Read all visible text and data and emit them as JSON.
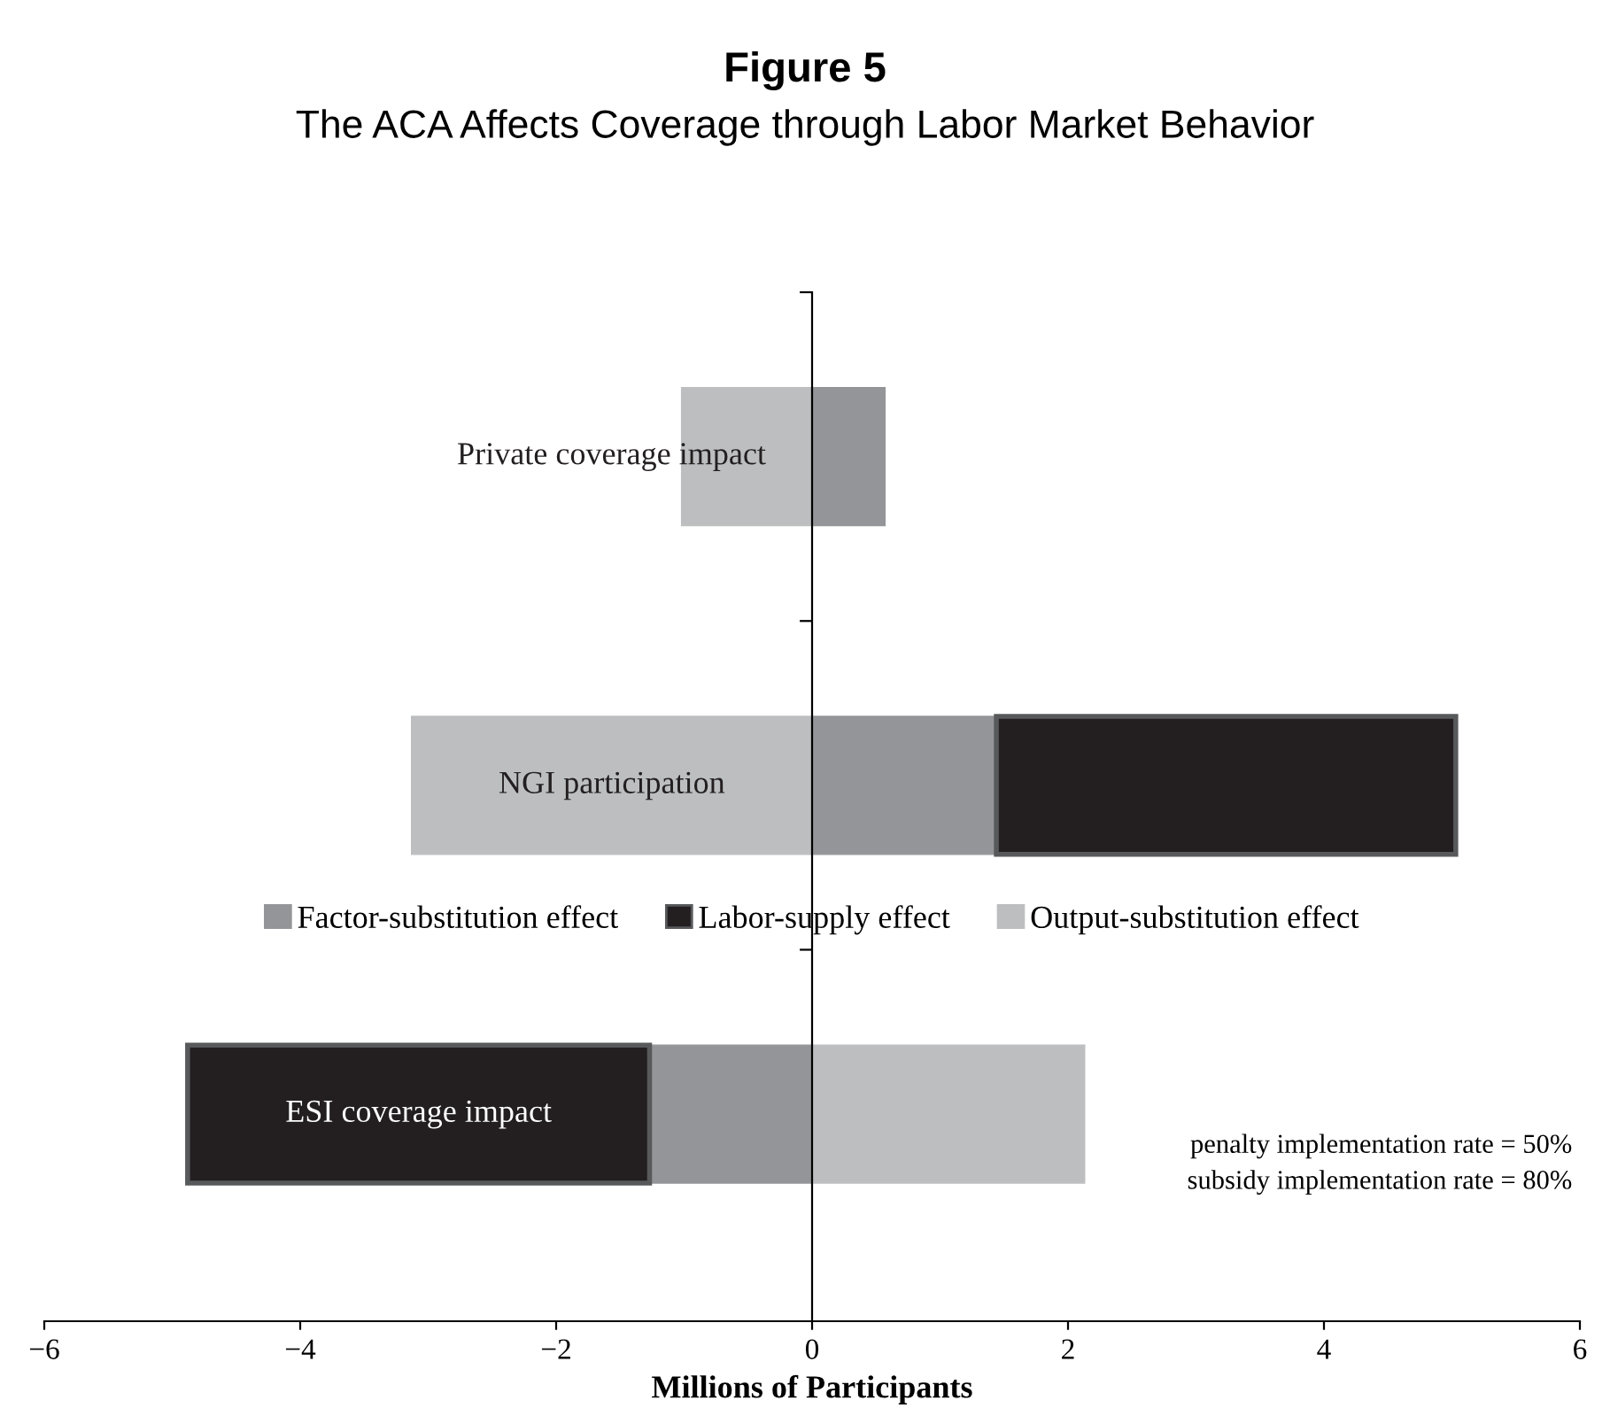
{
  "chart_data": {
    "type": "bar",
    "orientation": "horizontal",
    "stacked": true,
    "title": "Figure 5",
    "subtitle": "The ACA Affects Coverage through Labor Market Behavior",
    "xlabel": "Millions of Participants",
    "categories": [
      "Private coverage impact",
      "NGI participation",
      "ESI coverage impact"
    ],
    "series": [
      {
        "name": "Factor-substitution effect",
        "color": "#939598",
        "values": [
          0.57,
          1.44,
          -1.27
        ]
      },
      {
        "name": "Labor-supply effect",
        "color": "#231f20",
        "values": [
          0,
          3.59,
          -3.61
        ]
      },
      {
        "name": "Output-substitution effect",
        "color": "#bcbec0",
        "values": [
          -1.02,
          -3.13,
          2.13
        ]
      }
    ],
    "xlim": [
      -6,
      6
    ],
    "xticks": [
      {
        "value": -6,
        "label": "−6"
      },
      {
        "value": -4,
        "label": "−4"
      },
      {
        "value": -2,
        "label": "−2"
      },
      0,
      2,
      4,
      6
    ],
    "tick_labels": "x",
    "grid": false,
    "legend": "center",
    "annotations": [
      "penalty implementation rate = 50%",
      "subsidy implementation rate = 80%"
    ]
  }
}
